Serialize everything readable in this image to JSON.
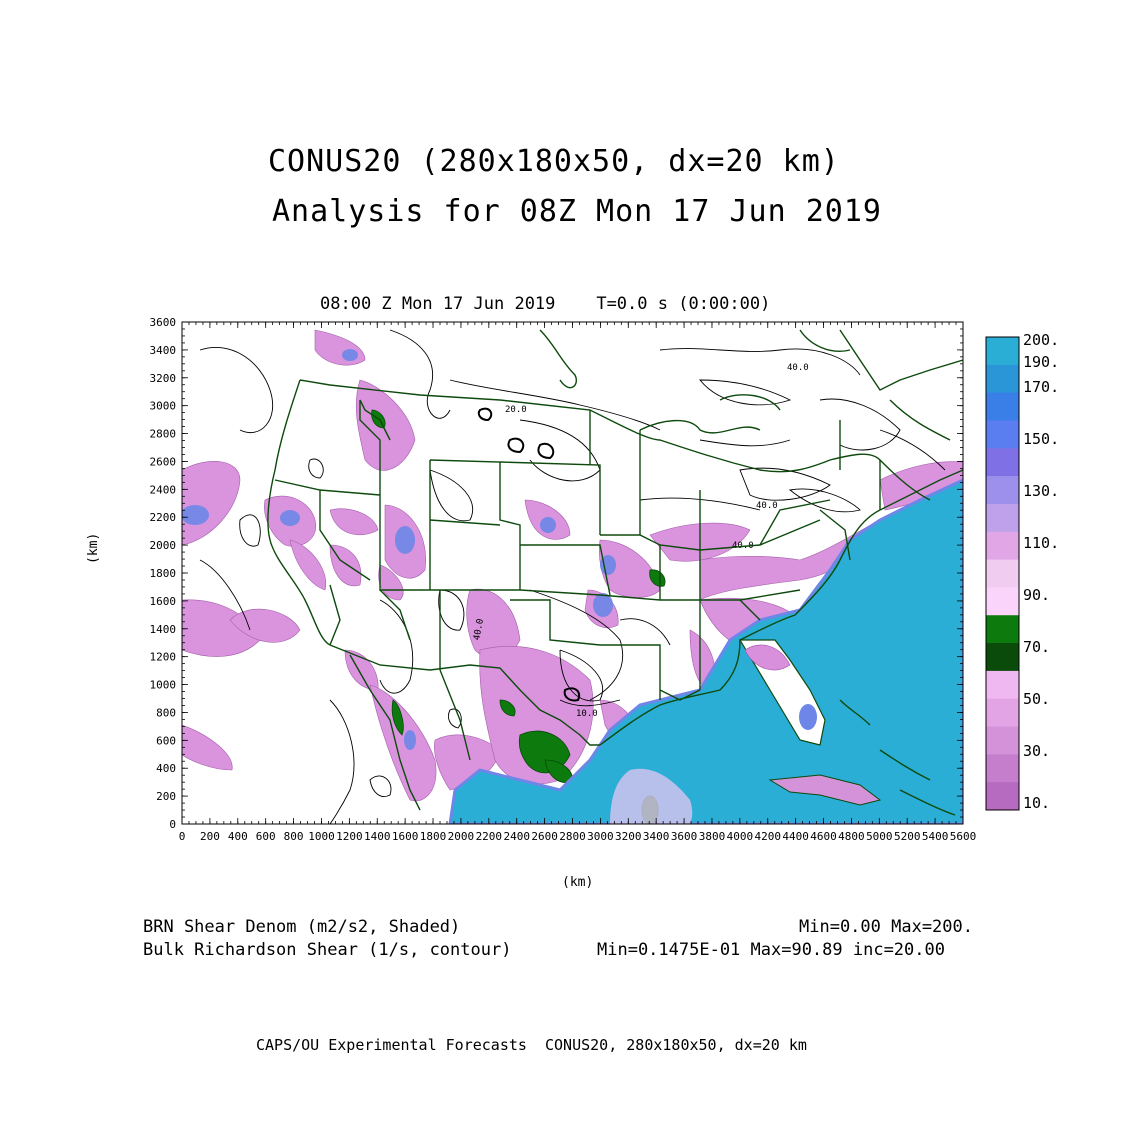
{
  "header": {
    "title_line1": "CONUS20 (280x180x50, dx=20 km)",
    "title_line2": "Analysis for 08Z Mon 17 Jun 2019"
  },
  "plot": {
    "time_label": "08:00 Z Mon 17 Jun 2019    T=0.0 s (0:00:00)",
    "x_axis_unit": "(km)",
    "y_axis_unit": "(km)",
    "x_ticks": [
      "0",
      "200",
      "400",
      "600",
      "800",
      "1000",
      "1200",
      "1400",
      "1600",
      "1800",
      "2000",
      "2200",
      "2400",
      "2600",
      "2800",
      "3000",
      "3200",
      "3400",
      "3600",
      "3800",
      "4000",
      "4200",
      "4400",
      "4600",
      "4800",
      "5000",
      "5200",
      "5400",
      "5600"
    ],
    "y_ticks": [
      "0",
      "200",
      "400",
      "600",
      "800",
      "1000",
      "1200",
      "1400",
      "1600",
      "1800",
      "2000",
      "2200",
      "2400",
      "2600",
      "2800",
      "3000",
      "3200",
      "3400",
      "3600"
    ],
    "x_range": [
      0,
      5600
    ],
    "y_range": [
      0,
      3600
    ],
    "contour_labels": [
      "40.0",
      "20.0",
      "40.0",
      "40.0",
      "10.0",
      "40.0"
    ]
  },
  "colorbar": {
    "colors": [
      "#b76bc0",
      "#c47ecc",
      "#d493d8",
      "#e3a4e6",
      "#f0b8f0",
      "#0a4a0a",
      "#0c7a0c",
      "#fad4fa",
      "#f0cdf0",
      "#e0a6e6",
      "#bfa0ea",
      "#9c90ec",
      "#8070e6",
      "#5a7ef0",
      "#3a7ee8",
      "#2a96d8",
      "#2aaed6"
    ],
    "labels": [
      "10.",
      "30.",
      "50.",
      "70.",
      "90.",
      "110.",
      "130.",
      "150.",
      "170.",
      "190.",
      "200."
    ]
  },
  "captions": {
    "left1": "BRN Shear Denom (m2/s2, Shaded)",
    "left2": "Bulk Richardson Shear (1/s, contour)",
    "right1": "Min=0.00 Max=200.",
    "right2": "Min=0.1475E-01 Max=90.89 inc=20.00"
  },
  "footer": "CAPS/OU Experimental Forecasts  CONUS20, 280x180x50, dx=20 km",
  "colors": {
    "ocean": "#2aaed6",
    "boundary": "#0d4a0d",
    "pink": "#d88fdc"
  }
}
